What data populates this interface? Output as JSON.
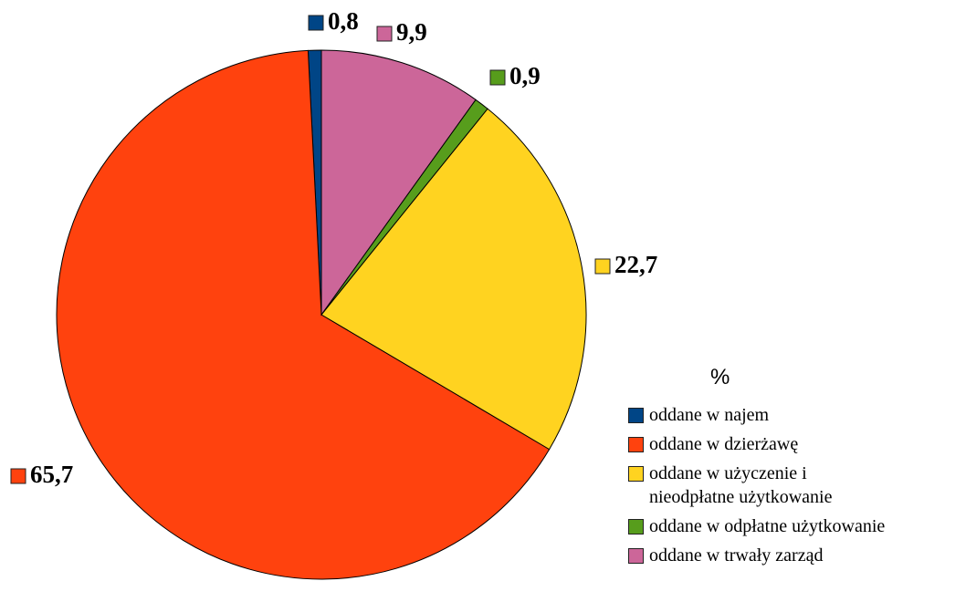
{
  "chart_data": {
    "type": "pie",
    "legend_title": "%",
    "categories": [
      "oddane w najem",
      "oddane w dzierżawę",
      "oddane w użyczenie i\nnieodpłatne użytkowanie",
      "oddane w odpłatne użytkowanie",
      "oddane w trwały zarząd"
    ],
    "values": [
      0.8,
      65.7,
      22.7,
      0.9,
      9.9
    ],
    "value_labels": [
      "0,8",
      "65,7",
      "22,7",
      "0,9",
      "9,9"
    ],
    "colors": [
      "#004586",
      "#ff420e",
      "#ffd320",
      "#579d1c",
      "#cc6699"
    ],
    "legend": "right"
  }
}
